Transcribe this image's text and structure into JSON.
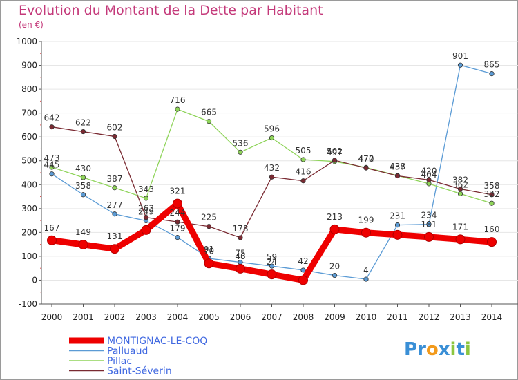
{
  "page": {
    "title": "Evolution du Montant de la Dette par Habitant",
    "unit": "(en €)"
  },
  "logo": {
    "text": "Proxiti",
    "letters": [
      {
        "char": "P",
        "color": "#3a8fd6"
      },
      {
        "char": "r",
        "color": "#3a8fd6"
      },
      {
        "char": "o",
        "color": "#f29a1c"
      },
      {
        "char": "x",
        "color": "#3a8fd6"
      },
      {
        "char": "i",
        "color": "#8cc63f"
      },
      {
        "char": "t",
        "color": "#3a8fd6"
      },
      {
        "char": "i",
        "color": "#8cc63f"
      }
    ]
  },
  "chart_data": {
    "type": "line",
    "title": "Evolution du Montant de la Dette par Habitant",
    "ylabel": "(en €)",
    "xlabel": "",
    "ylim": [
      -100,
      1000
    ],
    "yticks": [
      -100,
      0,
      100,
      200,
      300,
      400,
      500,
      600,
      700,
      800,
      900,
      1000
    ],
    "grid": true,
    "legend_position": "bottom-left",
    "x": [
      "2000",
      "2001",
      "2002",
      "2003",
      "2004",
      "2005",
      "2006",
      "2007",
      "2008",
      "2009",
      "2010",
      "2011",
      "2012",
      "2013",
      "2014"
    ],
    "series": [
      {
        "name": "MONTIGNAC-LE-COQ",
        "color": "#ee0000",
        "highlight": true,
        "values": [
          167,
          149,
          131,
          210,
          321,
          70,
          48,
          24,
          0,
          213,
          199,
          190,
          181,
          171,
          160
        ],
        "labels": [
          "167",
          "149",
          "131",
          "",
          "321",
          "70",
          "48",
          "24",
          "",
          "213",
          "199",
          "",
          "181",
          "171",
          "160"
        ]
      },
      {
        "name": "Palluaud",
        "color": "#5b9bd5",
        "highlight": false,
        "values": [
          445,
          358,
          277,
          249,
          179,
          91,
          75,
          59,
          42,
          20,
          4,
          231,
          234,
          901,
          865
        ],
        "labels": [
          "445",
          "358",
          "277",
          "249",
          "179",
          "91",
          "75",
          "59",
          "42",
          "20",
          "4",
          "231",
          "234",
          "901",
          "865"
        ]
      },
      {
        "name": "Pillac",
        "color": "#8fd45a",
        "highlight": false,
        "values": [
          473,
          430,
          387,
          343,
          716,
          665,
          536,
          596,
          505,
          497,
          472,
          438,
          404,
          362,
          322
        ],
        "labels": [
          "473",
          "430",
          "387",
          "343",
          "716",
          "665",
          "536",
          "596",
          "505",
          "497",
          "472",
          "438",
          "404",
          "362",
          "322"
        ]
      },
      {
        "name": "Saint-Séverin",
        "color": "#7a2a32",
        "highlight": false,
        "values": [
          642,
          622,
          602,
          263,
          244,
          225,
          178,
          432,
          416,
          502,
          470,
          437,
          420,
          382,
          358
        ],
        "labels": [
          "642",
          "622",
          "602",
          "263",
          "244",
          "225",
          "178",
          "432",
          "416",
          "502",
          "470",
          "437",
          "420",
          "382",
          "358"
        ]
      }
    ]
  }
}
